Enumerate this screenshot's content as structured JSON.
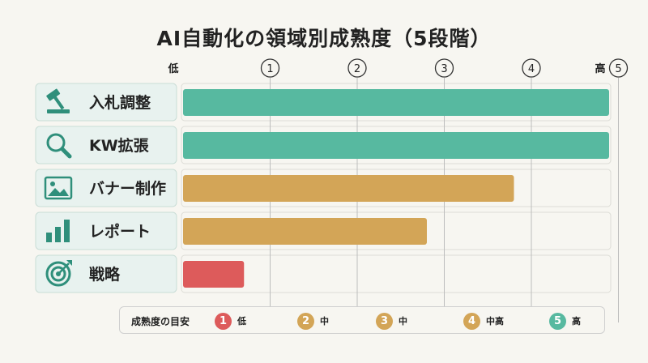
{
  "title": "AI自動化の領域別成熟度（5段階）",
  "colors": {
    "green": "#57b9a0",
    "gold": "#d3a557",
    "red": "#dd5b5b",
    "icon": "#2f8f7b"
  },
  "chart_data": {
    "type": "bar",
    "orientation": "horizontal",
    "title": "AI自動化の領域別成熟度（5段階）",
    "categories": [
      "入札調整",
      "KW拡張",
      "バナー制作",
      "レポート",
      "戦略"
    ],
    "icons": [
      "gavel-icon",
      "magnifier-icon",
      "image-icon",
      "bar-chart-icon",
      "target-icon"
    ],
    "values": [
      5.4,
      5.4,
      3.8,
      2.8,
      0.7
    ],
    "bar_colors": [
      "#57b9a0",
      "#57b9a0",
      "#d3a557",
      "#d3a557",
      "#dd5b5b"
    ],
    "ticks": [
      "1",
      "2",
      "3",
      "4",
      "5"
    ],
    "axis_low_label": "低",
    "axis_high_label": "高",
    "xlim": [
      0,
      5.4
    ],
    "grid": true
  },
  "legend": {
    "title": "成熟度の目安",
    "items": [
      {
        "num": "1",
        "label": "低",
        "color": "#dd5b5b"
      },
      {
        "num": "2",
        "label": "中",
        "color": "#d3a557"
      },
      {
        "num": "3",
        "label": "中",
        "color": "#d3a557"
      },
      {
        "num": "4",
        "label": "中高",
        "color": "#d3a557"
      },
      {
        "num": "5",
        "label": "高",
        "color": "#57b9a0"
      }
    ]
  }
}
